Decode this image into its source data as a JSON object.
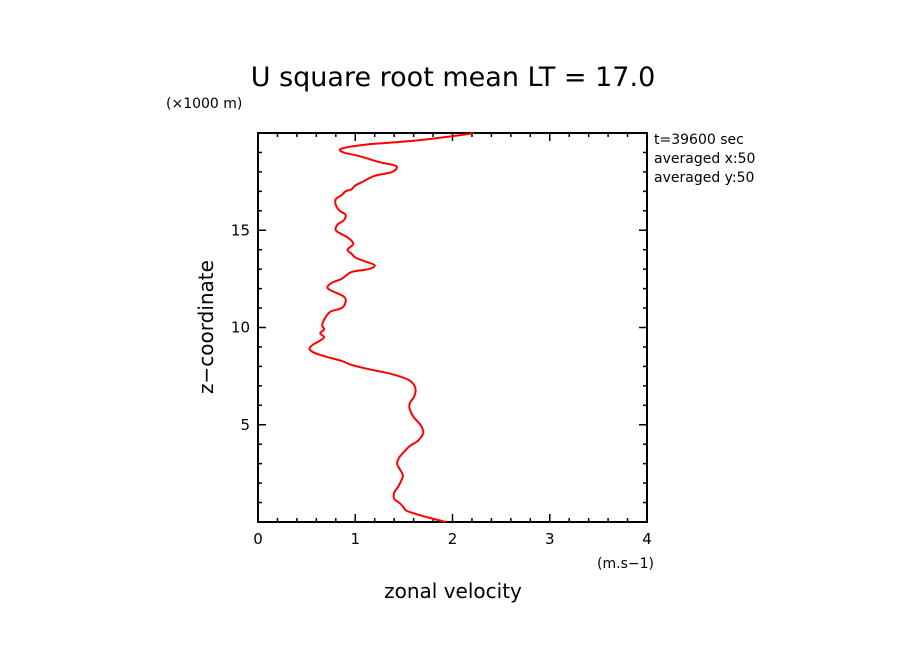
{
  "chart_data": {
    "type": "line",
    "title": "U square root mean LT = 17.0",
    "xlabel": "zonal velocity",
    "xunit": "(m.s−1)",
    "ylabel": "z−coordinate",
    "yunit": "(×1000 m)",
    "xlim": [
      0,
      4
    ],
    "ylim": [
      0,
      20
    ],
    "xticks": [
      0,
      1,
      2,
      3,
      4
    ],
    "xtick_labels": [
      "0",
      "1",
      "2",
      "3",
      "4"
    ],
    "yticks": [
      5,
      10,
      15
    ],
    "ytick_labels": [
      "5",
      "10",
      "15"
    ],
    "grid": false,
    "annotations": [
      "t=39600 sec",
      "averaged  x:50",
      "averaged  y:50"
    ],
    "line_color": "#ff0000",
    "series": [
      {
        "x": [
          1.93,
          1.7,
          1.57,
          1.52,
          1.49,
          1.45,
          1.4,
          1.4,
          1.44,
          1.47,
          1.49,
          1.46,
          1.43,
          1.45,
          1.5,
          1.56,
          1.65,
          1.7,
          1.67,
          1.6,
          1.56,
          1.56,
          1.6,
          1.62,
          1.61,
          1.55,
          1.38,
          1.1,
          0.95,
          0.85,
          0.7,
          0.58,
          0.53,
          0.56,
          0.63,
          0.68,
          0.64,
          0.68,
          0.66,
          0.68,
          0.74,
          0.86,
          0.9,
          0.88,
          0.72,
          0.76,
          0.86,
          0.94,
          1.0,
          1.14,
          1.2,
          1.1,
          1.0,
          0.96,
          0.92,
          0.98,
          0.93,
          0.86,
          0.8,
          0.82,
          0.88,
          0.9,
          0.84,
          0.8,
          0.8,
          0.86,
          0.9,
          0.96,
          1.0,
          1.08,
          1.2,
          1.38,
          1.42,
          1.25,
          1.05,
          0.88,
          0.86,
          1.1,
          1.6,
          2.1,
          2.22
        ],
        "y": [
          0.0,
          0.3,
          0.5,
          0.6,
          0.8,
          1.0,
          1.2,
          1.5,
          1.8,
          2.1,
          2.4,
          2.7,
          3.0,
          3.3,
          3.6,
          3.9,
          4.2,
          4.6,
          5.0,
          5.4,
          5.8,
          6.1,
          6.4,
          6.7,
          7.0,
          7.3,
          7.6,
          7.9,
          8.1,
          8.3,
          8.5,
          8.7,
          8.9,
          9.1,
          9.3,
          9.5,
          9.7,
          9.9,
          10.1,
          10.4,
          10.8,
          11.0,
          11.3,
          11.6,
          12.0,
          12.3,
          12.5,
          12.8,
          12.9,
          13.0,
          13.2,
          13.4,
          13.6,
          13.8,
          14.0,
          14.3,
          14.6,
          14.8,
          15.0,
          15.3,
          15.5,
          15.8,
          16.0,
          16.3,
          16.6,
          16.8,
          17.0,
          17.1,
          17.3,
          17.5,
          17.8,
          18.0,
          18.3,
          18.5,
          18.8,
          19.0,
          19.2,
          19.4,
          19.6,
          19.9,
          20.0
        ]
      }
    ]
  }
}
